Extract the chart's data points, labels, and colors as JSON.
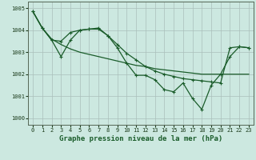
{
  "bg_color": "#cce8e0",
  "grid_color": "#aabfba",
  "line_color": "#1a5c2a",
  "title": "Graphe pression niveau de la mer (hPa)",
  "xlim": [
    -0.5,
    23.5
  ],
  "ylim": [
    999.7,
    1005.3
  ],
  "yticks": [
    1000,
    1001,
    1002,
    1003,
    1004,
    1005
  ],
  "xticks": [
    0,
    1,
    2,
    3,
    4,
    5,
    6,
    7,
    8,
    9,
    10,
    11,
    12,
    13,
    14,
    15,
    16,
    17,
    18,
    19,
    20,
    21,
    22,
    23
  ],
  "s1_x": [
    0,
    1,
    2,
    3,
    4,
    5,
    6,
    7,
    8,
    9,
    10,
    11,
    12,
    13,
    14,
    15,
    16,
    17,
    18,
    19,
    20,
    21,
    22,
    23
  ],
  "s1_y": [
    1004.85,
    1004.1,
    1003.6,
    1003.35,
    1003.15,
    1003.0,
    1002.9,
    1002.8,
    1002.7,
    1002.6,
    1002.5,
    1002.4,
    1002.35,
    1002.25,
    1002.2,
    1002.15,
    1002.1,
    1002.05,
    1002.0,
    1002.0,
    1002.0,
    1002.0,
    1002.0,
    1002.0
  ],
  "s2_x": [
    0,
    1,
    2,
    3,
    4,
    5,
    6,
    7,
    8,
    9,
    10,
    11,
    12,
    13,
    14,
    15,
    16,
    17,
    18,
    19,
    20,
    21,
    22,
    23
  ],
  "s2_y": [
    1004.85,
    1004.1,
    1003.55,
    1003.5,
    1003.9,
    1004.0,
    1004.05,
    1004.05,
    1003.75,
    1003.35,
    1002.95,
    1002.65,
    1002.35,
    1002.15,
    1002.0,
    1001.9,
    1001.8,
    1001.75,
    1001.7,
    1001.65,
    1001.6,
    1003.2,
    1003.25,
    1003.2
  ],
  "s3_x": [
    0,
    1,
    2,
    3,
    4,
    5,
    6,
    7,
    8,
    9,
    10,
    11,
    12,
    13,
    14,
    15,
    16,
    17,
    18,
    19,
    20,
    21,
    22,
    23
  ],
  "s3_y": [
    1004.85,
    1004.1,
    1003.55,
    1002.8,
    1003.55,
    1004.0,
    1004.05,
    1004.1,
    1003.75,
    1003.2,
    1002.5,
    1001.95,
    1001.95,
    1001.75,
    1001.3,
    1001.2,
    1001.6,
    1000.9,
    1000.4,
    1001.5,
    1002.0,
    1002.8,
    1003.25,
    1003.2
  ],
  "line_width": 0.9,
  "marker": "+",
  "marker_size": 3,
  "title_fontsize": 6.5,
  "tick_fontsize": 5
}
